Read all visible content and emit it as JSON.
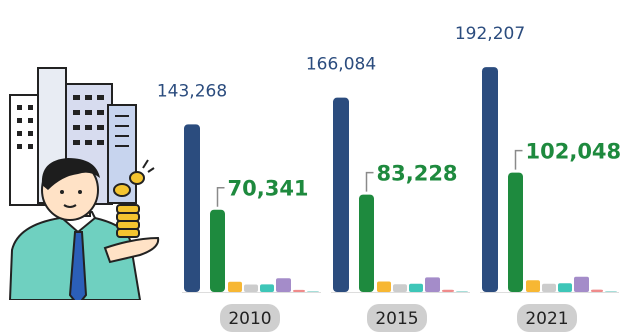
{
  "chart_data": {
    "type": "bar",
    "categories": [
      "2010",
      "2015",
      "2021"
    ],
    "series": [
      {
        "values": [
          143268,
          166084,
          192207
        ],
        "color": "#2b4c7e"
      },
      {
        "values": [
          70341,
          83228,
          102048
        ],
        "color": "#1e8a3e"
      },
      {
        "values": [
          8800,
          9000,
          10000
        ],
        "color": "#f7b733"
      },
      {
        "values": [
          6400,
          6600,
          7000
        ],
        "color": "#cccccc"
      },
      {
        "values": [
          6500,
          7000,
          7500
        ],
        "color": "#3ec6b8"
      },
      {
        "values": [
          11800,
          12500,
          13000
        ],
        "color": "#a48cc9"
      },
      {
        "values": [
          1800,
          1900,
          2000
        ],
        "color": "#ef8b8b"
      },
      {
        "values": [
          700,
          700,
          700
        ],
        "color": "#9ad9d4"
      }
    ],
    "labels_primary": [
      "143,268",
      "166,084",
      "192,207"
    ],
    "labels_secondary": [
      "70,341",
      "83,228",
      "102,048"
    ],
    "label_colors": {
      "primary": "#2b4c7e",
      "secondary": "#1e8a3e"
    },
    "ylim": [
      0,
      200000
    ],
    "grid": false,
    "legend": "none"
  },
  "illustration": {
    "icons": [
      "office-buildings-icon",
      "businessman-icon",
      "coin-stack-icon"
    ]
  }
}
